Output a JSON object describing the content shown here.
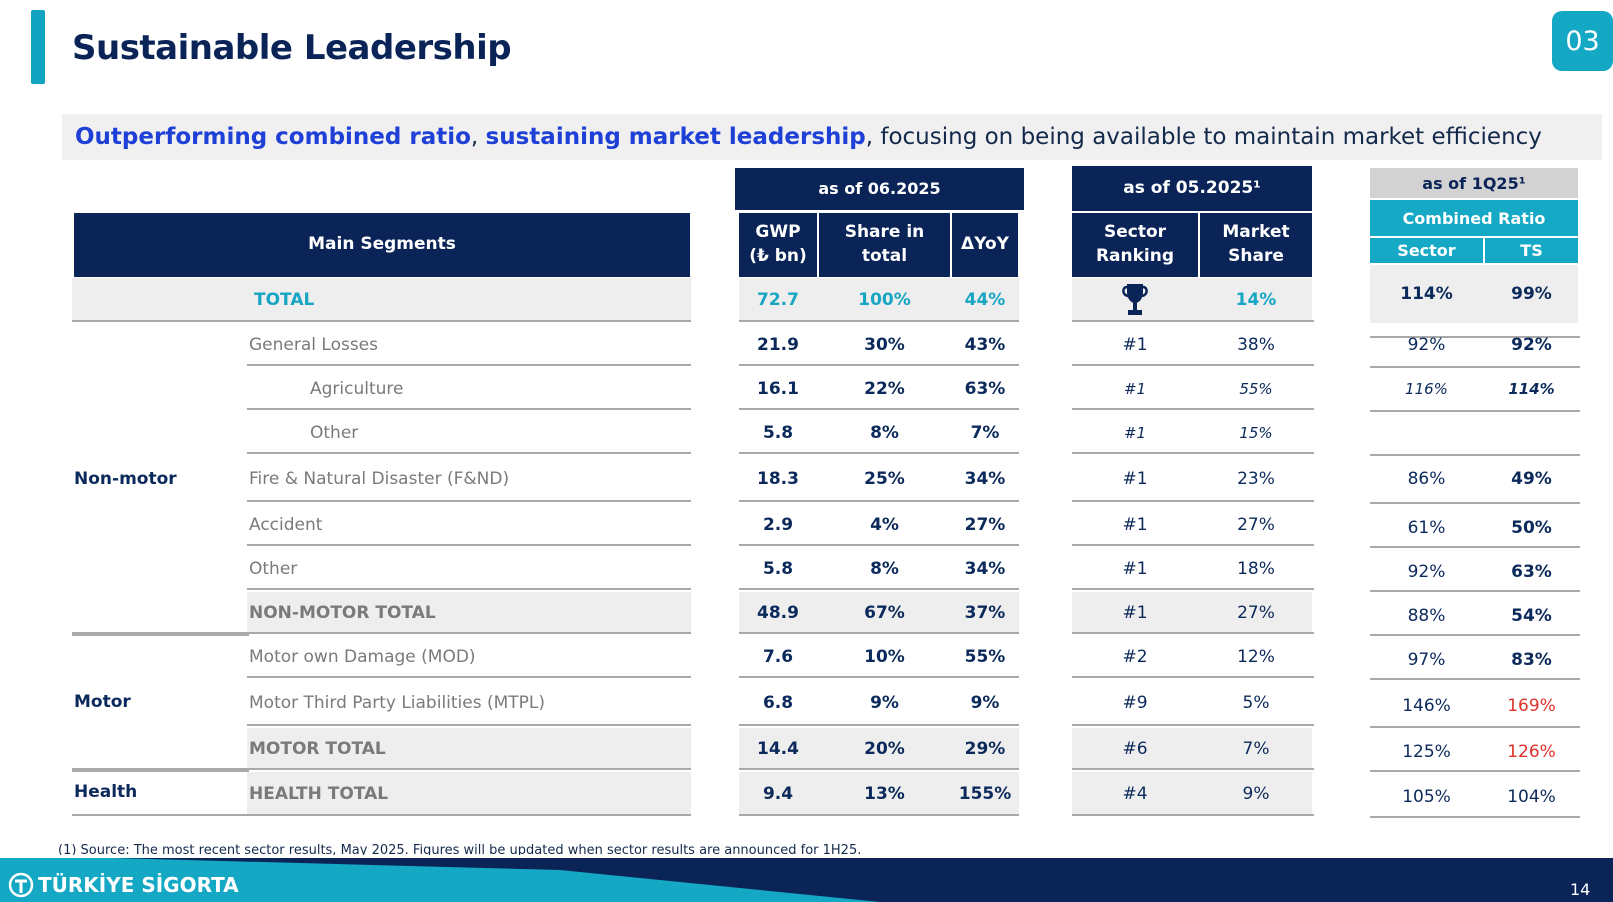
{
  "title": "Sustainable Leadership",
  "section_badge": "03",
  "subtitle": {
    "hl1": "Outperforming combined ratio",
    "sep1": ", ",
    "hl2": "sustaining market leadership",
    "rest": ", focusing on being available to maintain market efficiency"
  },
  "headers": {
    "main_segments": "Main Segments",
    "as_of_0625": "as of 06.2025",
    "as_of_0525": "as of 05.2025¹",
    "as_of_1q25": "as of 1Q25¹",
    "gwp_1": "GWP",
    "gwp_2": "(₺ bn)",
    "share_1": "Share in",
    "share_2": "total",
    "yoy": "ΔYoY",
    "rank_1": "Sector",
    "rank_2": "Ranking",
    "ms_1": "Market",
    "ms_2": "Share",
    "combined_ratio": "Combined Ratio",
    "sector": "Sector",
    "ts": "TS"
  },
  "groups": {
    "nonmotor": "Non-motor",
    "motor": "Motor",
    "health": "Health"
  },
  "rows": [
    {
      "name": "TOTAL",
      "gwp": "72.7",
      "share": "100%",
      "yoy": "44%",
      "rank": "",
      "ms": "14%",
      "cr_sector": "114%",
      "cr_ts": "99%"
    },
    {
      "name": "General Losses",
      "gwp": "21.9",
      "share": "30%",
      "yoy": "43%",
      "rank": "#1",
      "ms": "38%",
      "cr_sector": "92%",
      "cr_ts": "92%"
    },
    {
      "name": "Agriculture",
      "gwp": "16.1",
      "share": "22%",
      "yoy": "63%",
      "rank": "#1",
      "ms": "55%",
      "cr_sector": "116%",
      "cr_ts": "114%"
    },
    {
      "name": "Other",
      "gwp": "5.8",
      "share": "8%",
      "yoy": "7%",
      "rank": "#1",
      "ms": "15%",
      "cr_sector": "",
      "cr_ts": ""
    },
    {
      "name": "Fire & Natural Disaster (F&ND)",
      "gwp": "18.3",
      "share": "25%",
      "yoy": "34%",
      "rank": "#1",
      "ms": "23%",
      "cr_sector": "86%",
      "cr_ts": "49%"
    },
    {
      "name": "Accident",
      "gwp": "2.9",
      "share": "4%",
      "yoy": "27%",
      "rank": "#1",
      "ms": "27%",
      "cr_sector": "61%",
      "cr_ts": "50%"
    },
    {
      "name": "Other",
      "gwp": "5.8",
      "share": "8%",
      "yoy": "34%",
      "rank": "#1",
      "ms": "18%",
      "cr_sector": "92%",
      "cr_ts": "63%"
    },
    {
      "name": "NON-MOTOR TOTAL",
      "gwp": "48.9",
      "share": "67%",
      "yoy": "37%",
      "rank": "#1",
      "ms": "27%",
      "cr_sector": "88%",
      "cr_ts": "54%"
    },
    {
      "name": "Motor own Damage (MOD)",
      "gwp": "7.6",
      "share": "10%",
      "yoy": "55%",
      "rank": "#2",
      "ms": "12%",
      "cr_sector": "97%",
      "cr_ts": "83%"
    },
    {
      "name": "Motor Third Party Liabilities (MTPL)",
      "gwp": "6.8",
      "share": "9%",
      "yoy": "9%",
      "rank": "#9",
      "ms": "5%",
      "cr_sector": "146%",
      "cr_ts": "169%"
    },
    {
      "name": "MOTOR TOTAL",
      "gwp": "14.4",
      "share": "20%",
      "yoy": "29%",
      "rank": "#6",
      "ms": "7%",
      "cr_sector": "125%",
      "cr_ts": "126%"
    },
    {
      "name": "HEALTH TOTAL",
      "gwp": "9.4",
      "share": "13%",
      "yoy": "155%",
      "rank": "#4",
      "ms": "9%",
      "cr_sector": "105%",
      "cr_ts": "104%"
    }
  ],
  "footnote": "(1) Source: The most recent sector results, May 2025. Figures will be updated when sector results are announced for 1H25.",
  "footer": {
    "logo_text": "TÜRKİYE SİGORTA",
    "page_number": "14"
  },
  "colors": {
    "navy": "#0a2458",
    "teal": "#15a9c6",
    "red": "#e0322a",
    "highlight_blue": "#1e40d6"
  },
  "icons": {
    "trophy": "trophy-icon",
    "logo": "turkiye-sigorta-logo"
  }
}
